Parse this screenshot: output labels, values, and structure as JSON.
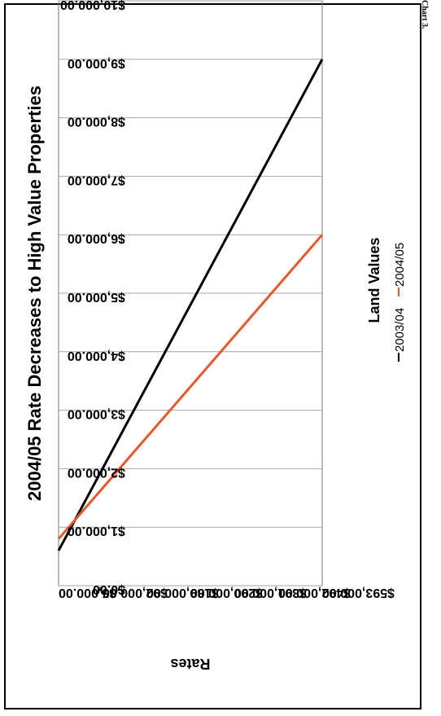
{
  "page_note": "Chart 3.",
  "chart_data": {
    "type": "line",
    "title": "2004/05 Rate Decreases to High Value Properties",
    "xlabel": "Land Values",
    "ylabel": "Rates",
    "x": [
      "$5,000.00",
      "$92,000.00",
      "$189,000.00",
      "$290,000.00",
      "$391,000.00",
      "$492,000.00",
      "$593,000.00"
    ],
    "y_ticks": [
      "$0.00",
      "$1,000.00",
      "$2,000.00",
      "$3,000.00",
      "$4,000.00",
      "$5,000.00",
      "$6,000.00",
      "$7,000.00",
      "$8,000.00",
      "$9,000.00",
      "$10,000.00"
    ],
    "ylim": [
      0,
      10000
    ],
    "grid": true,
    "legend_position": "bottom",
    "series": [
      {
        "name": "2003/04",
        "color": "#000000",
        "x": [
          5000,
          593000
        ],
        "values": [
          600,
          9000
        ]
      },
      {
        "name": "2004/05",
        "color": "#e8582a",
        "x": [
          5000,
          593000
        ],
        "values": [
          800,
          6000
        ]
      }
    ]
  }
}
